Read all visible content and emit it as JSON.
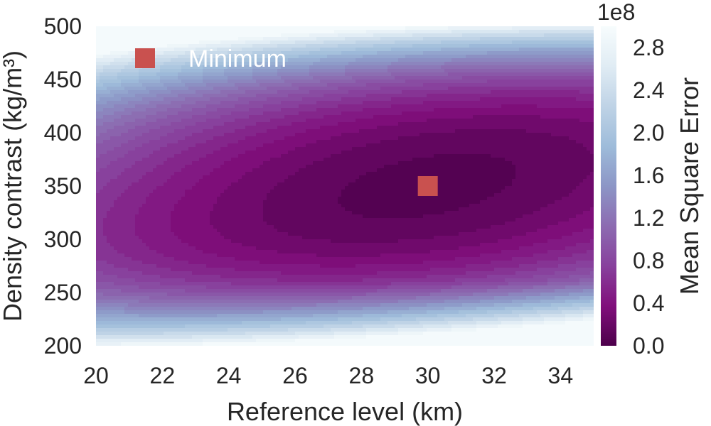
{
  "chart_data": {
    "type": "heatmap",
    "subtype": "filled-contour",
    "xlabel": "Reference level (km)",
    "ylabel": "Density contrast (kg/m³)",
    "xlim": [
      20,
      35
    ],
    "ylim": [
      200,
      500
    ],
    "xticks": [
      "20",
      "22",
      "24",
      "26",
      "28",
      "30",
      "32",
      "34"
    ],
    "yticks": [
      "200",
      "250",
      "300",
      "350",
      "400",
      "450",
      "500"
    ],
    "colorbar": {
      "label": "Mean Square Error",
      "multiplier": "1e8",
      "range": [
        0.0,
        3.0
      ],
      "ticks": [
        "0.0",
        "0.4",
        "0.8",
        "1.2",
        "1.6",
        "2.0",
        "2.4",
        "2.8"
      ],
      "colors": [
        "#4d004b",
        "#810f7c",
        "#88419d",
        "#8c6bb1",
        "#8c96c6",
        "#9ebcda",
        "#bfd3e6",
        "#e0ecf4",
        "#f7fcfd"
      ]
    },
    "minimum": {
      "x": 30,
      "y": 350,
      "label": "Minimum",
      "color": "#c9514f"
    },
    "grid": false,
    "legend_position": "top-left"
  }
}
